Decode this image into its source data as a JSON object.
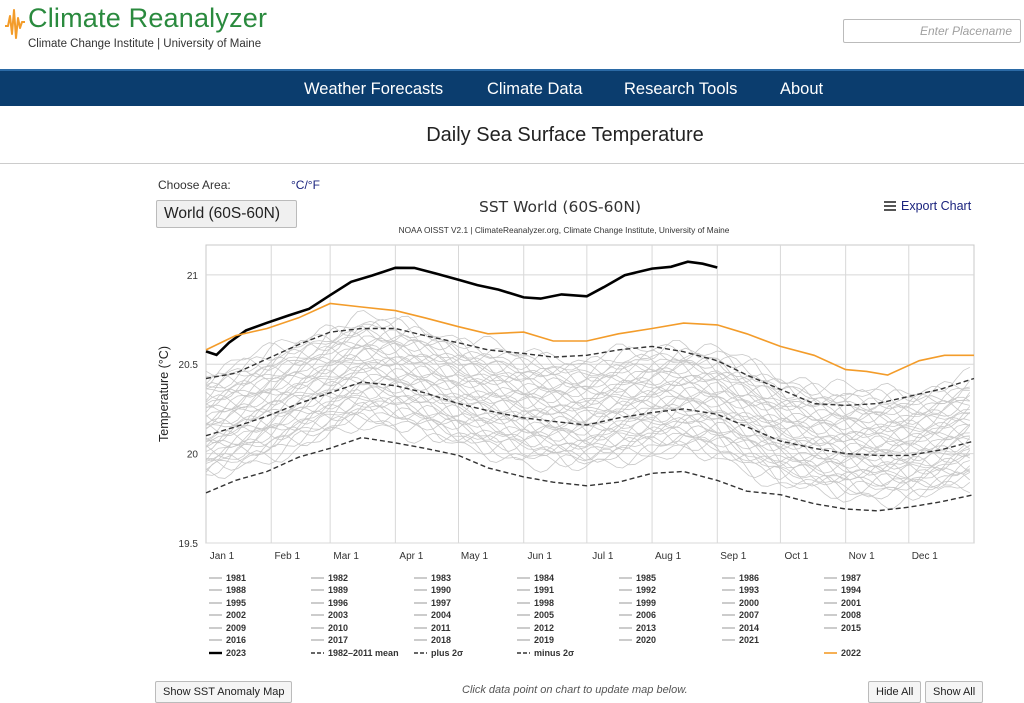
{
  "site": {
    "title": "Climate Reanalyzer",
    "subtitle": "Climate Change Institute | University of Maine",
    "search_placeholder": "Enter Placename"
  },
  "nav": [
    "Weather Forecasts",
    "Climate Data",
    "Research Tools",
    "About"
  ],
  "page": {
    "title": "Daily Sea Surface Temperature",
    "choose_area_label": "Choose Area:",
    "units_toggle": "°C/°F",
    "area_selected": "World (60S-60N)",
    "export_label": "Export Chart"
  },
  "footer": {
    "show_anomaly": "Show SST Anomaly Map",
    "hint": "Click data point on chart to update map below.",
    "hide_all": "Hide All",
    "show_all": "Show All"
  },
  "chart_data": {
    "type": "line",
    "title": "SST World (60S-60N)",
    "subtitle": "NOAA OISST V2.1 | ClimateReanalyzer.org, Climate Change Institute, University of Maine",
    "ylabel": "Temperature (°C)",
    "xlabel": "",
    "ylim": [
      19.5,
      21.2
    ],
    "yticks": [
      19.5,
      20,
      20.5,
      21
    ],
    "x_unit": "day of year",
    "xlim": [
      1,
      366
    ],
    "month_ticks": [
      {
        "label": "Jan 1",
        "day": 1
      },
      {
        "label": "Feb 1",
        "day": 32
      },
      {
        "label": "Mar 1",
        "day": 60
      },
      {
        "label": "Apr 1",
        "day": 91
      },
      {
        "label": "May 1",
        "day": 121
      },
      {
        "label": "Jun 1",
        "day": 152
      },
      {
        "label": "Jul 1",
        "day": 182
      },
      {
        "label": "Aug 1",
        "day": 213
      },
      {
        "label": "Sep 1",
        "day": 244
      },
      {
        "label": "Oct 1",
        "day": 274
      },
      {
        "label": "Nov 1",
        "day": 305
      },
      {
        "label": "Dec 1",
        "day": 335
      }
    ],
    "grid": true,
    "legend_position": "bottom",
    "colors": {
      "past_years": "#c8c8c8",
      "current": "#000000",
      "previous": "#f39c2a",
      "mean": "#333333"
    },
    "past_years": [
      "1981",
      "1982",
      "1983",
      "1984",
      "1985",
      "1986",
      "1987",
      "1988",
      "1989",
      "1990",
      "1991",
      "1992",
      "1993",
      "1994",
      "1995",
      "1996",
      "1997",
      "1998",
      "1999",
      "2000",
      "2001",
      "2002",
      "2003",
      "2004",
      "2005",
      "2006",
      "2007",
      "2008",
      "2009",
      "2010",
      "2011",
      "2012",
      "2013",
      "2014",
      "2015",
      "2016",
      "2017",
      "2018",
      "2019",
      "2020",
      "2021"
    ],
    "series": [
      {
        "name": "2023",
        "color": "#000000",
        "style": "solid",
        "points": [
          [
            1,
            20.56
          ],
          [
            6,
            20.54
          ],
          [
            12,
            20.62
          ],
          [
            20,
            20.68
          ],
          [
            30,
            20.72
          ],
          [
            40,
            20.76
          ],
          [
            50,
            20.8
          ],
          [
            60,
            20.88
          ],
          [
            70,
            20.96
          ],
          [
            80,
            21.0
          ],
          [
            91,
            21.05
          ],
          [
            100,
            21.05
          ],
          [
            110,
            21.02
          ],
          [
            121,
            20.97
          ],
          [
            130,
            20.95
          ],
          [
            140,
            20.92
          ],
          [
            152,
            20.87
          ],
          [
            160,
            20.86
          ],
          [
            170,
            20.88
          ],
          [
            182,
            20.89
          ],
          [
            190,
            20.92
          ],
          [
            200,
            20.99
          ],
          [
            213,
            21.03
          ],
          [
            222,
            21.05
          ],
          [
            230,
            21.08
          ],
          [
            237,
            21.06
          ],
          [
            244,
            21.04
          ]
        ]
      },
      {
        "name": "2022",
        "color": "#f39c2a",
        "style": "solid",
        "points": [
          [
            1,
            20.58
          ],
          [
            15,
            20.66
          ],
          [
            30,
            20.7
          ],
          [
            45,
            20.76
          ],
          [
            60,
            20.84
          ],
          [
            75,
            20.82
          ],
          [
            91,
            20.8
          ],
          [
            105,
            20.76
          ],
          [
            121,
            20.71
          ],
          [
            135,
            20.67
          ],
          [
            152,
            20.68
          ],
          [
            166,
            20.63
          ],
          [
            182,
            20.63
          ],
          [
            197,
            20.67
          ],
          [
            213,
            20.7
          ],
          [
            228,
            20.73
          ],
          [
            244,
            20.72
          ],
          [
            258,
            20.67
          ],
          [
            274,
            20.6
          ],
          [
            290,
            20.55
          ],
          [
            305,
            20.47
          ],
          [
            315,
            20.46
          ],
          [
            325,
            20.44
          ],
          [
            340,
            20.52
          ],
          [
            352,
            20.55
          ],
          [
            366,
            20.55
          ]
        ]
      },
      {
        "name": "1982–2011 mean",
        "color": "#333333",
        "style": "dashed",
        "points": [
          [
            1,
            20.1
          ],
          [
            15,
            20.15
          ],
          [
            30,
            20.21
          ],
          [
            45,
            20.28
          ],
          [
            60,
            20.34
          ],
          [
            75,
            20.4
          ],
          [
            91,
            20.38
          ],
          [
            105,
            20.34
          ],
          [
            121,
            20.28
          ],
          [
            135,
            20.24
          ],
          [
            152,
            20.2
          ],
          [
            166,
            20.18
          ],
          [
            182,
            20.16
          ],
          [
            197,
            20.2
          ],
          [
            213,
            20.23
          ],
          [
            228,
            20.25
          ],
          [
            244,
            20.22
          ],
          [
            258,
            20.15
          ],
          [
            274,
            20.07
          ],
          [
            290,
            20.03
          ],
          [
            305,
            20.0
          ],
          [
            320,
            19.99
          ],
          [
            335,
            19.99
          ],
          [
            350,
            20.02
          ],
          [
            366,
            20.07
          ]
        ]
      },
      {
        "name": "plus 2σ",
        "color": "#333333",
        "style": "dashed",
        "points": [
          [
            1,
            20.42
          ],
          [
            15,
            20.45
          ],
          [
            30,
            20.53
          ],
          [
            45,
            20.61
          ],
          [
            60,
            20.68
          ],
          [
            75,
            20.7
          ],
          [
            91,
            20.7
          ],
          [
            105,
            20.66
          ],
          [
            121,
            20.62
          ],
          [
            135,
            20.58
          ],
          [
            152,
            20.56
          ],
          [
            166,
            20.54
          ],
          [
            182,
            20.55
          ],
          [
            197,
            20.58
          ],
          [
            213,
            20.6
          ],
          [
            228,
            20.57
          ],
          [
            244,
            20.52
          ],
          [
            258,
            20.44
          ],
          [
            274,
            20.36
          ],
          [
            290,
            20.28
          ],
          [
            305,
            20.27
          ],
          [
            320,
            20.28
          ],
          [
            335,
            20.32
          ],
          [
            350,
            20.36
          ],
          [
            366,
            20.42
          ]
        ]
      },
      {
        "name": "minus 2σ",
        "color": "#333333",
        "style": "dashed",
        "points": [
          [
            1,
            19.78
          ],
          [
            15,
            19.85
          ],
          [
            30,
            19.9
          ],
          [
            45,
            19.98
          ],
          [
            60,
            20.03
          ],
          [
            75,
            20.09
          ],
          [
            91,
            20.06
          ],
          [
            105,
            20.03
          ],
          [
            121,
            19.99
          ],
          [
            135,
            19.92
          ],
          [
            152,
            19.87
          ],
          [
            166,
            19.84
          ],
          [
            182,
            19.82
          ],
          [
            197,
            19.84
          ],
          [
            213,
            19.89
          ],
          [
            228,
            19.9
          ],
          [
            244,
            19.85
          ],
          [
            258,
            19.79
          ],
          [
            274,
            19.77
          ],
          [
            290,
            19.72
          ],
          [
            305,
            19.69
          ],
          [
            320,
            19.68
          ],
          [
            335,
            19.7
          ],
          [
            350,
            19.73
          ],
          [
            366,
            19.77
          ]
        ]
      }
    ]
  }
}
